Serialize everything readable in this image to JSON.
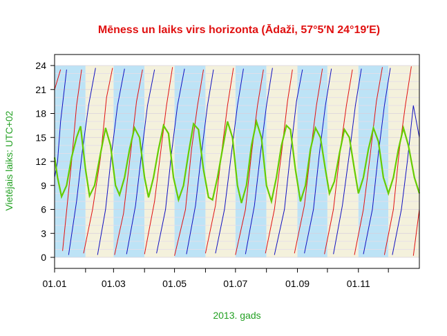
{
  "chart_data": {
    "type": "line",
    "title": "Mēness un laiks virs horizonta (Ādaži, 57°5′N 24°19′E)",
    "xlabel": "2013. gads",
    "ylabel": "Vietējais laiks: UTC+02",
    "xlim": [
      0,
      365
    ],
    "ylim": [
      0,
      24
    ],
    "y_ticks": [
      0,
      3,
      6,
      9,
      12,
      15,
      18,
      21,
      24
    ],
    "x_ticks": [
      {
        "label": "01.01",
        "day": 0
      },
      {
        "label": "01.03",
        "day": 59
      },
      {
        "label": "01.05",
        "day": 120
      },
      {
        "label": "01.07",
        "day": 181
      },
      {
        "label": "01.09",
        "day": 243
      },
      {
        "label": "01.11",
        "day": 304
      }
    ],
    "x_minor_ticks_day": [
      31,
      90,
      151,
      212,
      273,
      334
    ],
    "month_bands": [
      {
        "start": 0,
        "end": 31,
        "color": "#bde3f6"
      },
      {
        "start": 31,
        "end": 59,
        "color": "#f4f1dc"
      },
      {
        "start": 59,
        "end": 90,
        "color": "#bde3f6"
      },
      {
        "start": 90,
        "end": 120,
        "color": "#f4f1dc"
      },
      {
        "start": 120,
        "end": 151,
        "color": "#bde3f6"
      },
      {
        "start": 151,
        "end": 181,
        "color": "#f4f1dc"
      },
      {
        "start": 181,
        "end": 212,
        "color": "#bde3f6"
      },
      {
        "start": 212,
        "end": 243,
        "color": "#f4f1dc"
      },
      {
        "start": 243,
        "end": 273,
        "color": "#bde3f6"
      },
      {
        "start": 273,
        "end": 304,
        "color": "#f4f1dc"
      },
      {
        "start": 304,
        "end": 334,
        "color": "#bde3f6"
      },
      {
        "start": 334,
        "end": 365,
        "color": "#f4f1dc"
      }
    ],
    "grid": true,
    "series": [
      {
        "role": "moonrise",
        "color": "#e01010",
        "points_day_hour": [
          [
            0,
            21
          ],
          [
            6,
            23.5
          ],
          [
            8,
            0.8
          ],
          [
            17,
            12
          ],
          [
            22,
            19
          ],
          [
            27,
            23.5
          ],
          [
            29,
            0.5
          ],
          [
            38,
            6
          ],
          [
            46,
            12.5
          ],
          [
            52,
            20
          ],
          [
            58,
            23.7
          ],
          [
            60,
            0.3
          ],
          [
            69,
            5.5
          ],
          [
            76,
            13
          ],
          [
            82,
            19.5
          ],
          [
            88,
            23.5
          ],
          [
            90,
            0.4
          ],
          [
            100,
            7
          ],
          [
            106,
            13
          ],
          [
            112,
            19
          ],
          [
            118,
            23.8
          ],
          [
            120,
            0.2
          ],
          [
            131,
            6
          ],
          [
            137,
            13.5
          ],
          [
            143,
            19
          ],
          [
            149,
            23.5
          ],
          [
            151,
            0.5
          ],
          [
            161,
            6.5
          ],
          [
            167,
            13
          ],
          [
            173,
            19
          ],
          [
            179,
            23.7
          ],
          [
            181,
            0.3
          ],
          [
            191,
            6
          ],
          [
            197,
            13
          ],
          [
            203,
            19
          ],
          [
            209,
            23.5
          ],
          [
            211,
            0.5
          ],
          [
            220,
            6
          ],
          [
            227,
            13
          ],
          [
            233,
            19.5
          ],
          [
            238,
            23.5
          ],
          [
            240,
            0.5
          ],
          [
            250,
            6.5
          ],
          [
            256,
            13
          ],
          [
            262,
            19
          ],
          [
            268,
            23.6
          ],
          [
            270,
            0.4
          ],
          [
            279,
            6
          ],
          [
            286,
            13.5
          ],
          [
            292,
            19
          ],
          [
            298,
            23.5
          ],
          [
            300,
            0.3
          ],
          [
            309,
            6
          ],
          [
            316,
            13
          ],
          [
            322,
            19.5
          ],
          [
            328,
            23.8
          ],
          [
            330,
            0.3
          ],
          [
            339,
            6
          ],
          [
            345,
            13.5
          ],
          [
            351,
            19
          ],
          [
            357,
            23.9
          ],
          [
            359,
            0.2
          ],
          [
            365,
            6
          ]
        ]
      },
      {
        "role": "moonset",
        "color": "#1010c0",
        "points_day_hour": [
          [
            0,
            10
          ],
          [
            3,
            12
          ],
          [
            6,
            17
          ],
          [
            12,
            23.5
          ],
          [
            14,
            0.3
          ],
          [
            22,
            7
          ],
          [
            28,
            13.5
          ],
          [
            34,
            19
          ],
          [
            41,
            23.7
          ],
          [
            43,
            0.3
          ],
          [
            51,
            6
          ],
          [
            57,
            13
          ],
          [
            63,
            19
          ],
          [
            70,
            23.6
          ],
          [
            72,
            0.4
          ],
          [
            81,
            6.5
          ],
          [
            87,
            13
          ],
          [
            93,
            19
          ],
          [
            100,
            23.5
          ],
          [
            102,
            0.5
          ],
          [
            111,
            6
          ],
          [
            117,
            13
          ],
          [
            123,
            19
          ],
          [
            130,
            23.6
          ],
          [
            132,
            0.4
          ],
          [
            141,
            6.5
          ],
          [
            147,
            13
          ],
          [
            153,
            19
          ],
          [
            159,
            23.5
          ],
          [
            161,
            0.5
          ],
          [
            170,
            6
          ],
          [
            177,
            13
          ],
          [
            183,
            19
          ],
          [
            189,
            23.6
          ],
          [
            191,
            0.4
          ],
          [
            200,
            6.5
          ],
          [
            206,
            13
          ],
          [
            212,
            19
          ],
          [
            218,
            23.7
          ],
          [
            220,
            0.3
          ],
          [
            230,
            6
          ],
          [
            236,
            13
          ],
          [
            242,
            19.5
          ],
          [
            248,
            23.5
          ],
          [
            250,
            0.5
          ],
          [
            259,
            6
          ],
          [
            265,
            13
          ],
          [
            271,
            19
          ],
          [
            277,
            23.6
          ],
          [
            279,
            0.4
          ],
          [
            288,
            6.5
          ],
          [
            295,
            13
          ],
          [
            301,
            19
          ],
          [
            307,
            23.6
          ],
          [
            309,
            0.4
          ],
          [
            318,
            6
          ],
          [
            324,
            13
          ],
          [
            330,
            19
          ],
          [
            336,
            23.7
          ],
          [
            338,
            0.3
          ],
          [
            347,
            6
          ],
          [
            353,
            12
          ],
          [
            359,
            19
          ],
          [
            365,
            15
          ]
        ]
      },
      {
        "role": "hours_above_horizon",
        "color": "#66cc00",
        "points_day_hour": [
          [
            0,
            12.5
          ],
          [
            3,
            10
          ],
          [
            7,
            7.6
          ],
          [
            12,
            9
          ],
          [
            17,
            12.5
          ],
          [
            22,
            15
          ],
          [
            26,
            16.4
          ],
          [
            31,
            11
          ],
          [
            35,
            7.7
          ],
          [
            40,
            9
          ],
          [
            46,
            13
          ],
          [
            51,
            16.2
          ],
          [
            56,
            14
          ],
          [
            61,
            9
          ],
          [
            65,
            7.8
          ],
          [
            70,
            10
          ],
          [
            75,
            13.5
          ],
          [
            80,
            16.2
          ],
          [
            85,
            15
          ],
          [
            90,
            10
          ],
          [
            94,
            7.5
          ],
          [
            99,
            10
          ],
          [
            104,
            13.5
          ],
          [
            109,
            16.5
          ],
          [
            114,
            15.5
          ],
          [
            119,
            10
          ],
          [
            124,
            7.2
          ],
          [
            129,
            9
          ],
          [
            134,
            13
          ],
          [
            139,
            16.7
          ],
          [
            144,
            16
          ],
          [
            149,
            11
          ],
          [
            154,
            7.5
          ],
          [
            158,
            7.2
          ],
          [
            163,
            10
          ],
          [
            168,
            13.5
          ],
          [
            173,
            17
          ],
          [
            178,
            15
          ],
          [
            183,
            9
          ],
          [
            187,
            6.8
          ],
          [
            192,
            9
          ],
          [
            197,
            14
          ],
          [
            202,
            17
          ],
          [
            207,
            15
          ],
          [
            212,
            9
          ],
          [
            217,
            7
          ],
          [
            222,
            10
          ],
          [
            227,
            14
          ],
          [
            232,
            16.5
          ],
          [
            236,
            16
          ],
          [
            241,
            11
          ],
          [
            246,
            7
          ],
          [
            251,
            9
          ],
          [
            256,
            13.5
          ],
          [
            261,
            16.2
          ],
          [
            266,
            15
          ],
          [
            271,
            11
          ],
          [
            275,
            8
          ],
          [
            280,
            9.5
          ],
          [
            285,
            13
          ],
          [
            290,
            16
          ],
          [
            295,
            15
          ],
          [
            300,
            11
          ],
          [
            304,
            8
          ],
          [
            309,
            10
          ],
          [
            314,
            13.5
          ],
          [
            319,
            16.2
          ],
          [
            324,
            14.5
          ],
          [
            329,
            10
          ],
          [
            334,
            8
          ],
          [
            339,
            10
          ],
          [
            344,
            13.5
          ],
          [
            349,
            16.2
          ],
          [
            354,
            14
          ],
          [
            360,
            10
          ],
          [
            365,
            8
          ]
        ]
      }
    ]
  }
}
